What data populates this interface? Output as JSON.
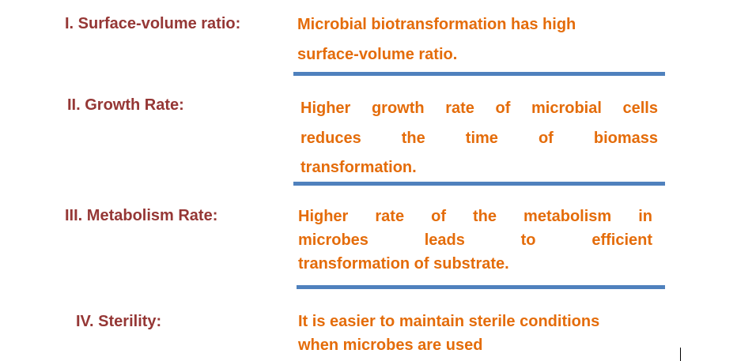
{
  "items": [
    {
      "label": "I. Surface-volume ratio:",
      "lines": [
        "Microbial biotransformation has high",
        "surface-volume ratio."
      ]
    },
    {
      "label": "II. Growth Rate:",
      "lines": [
        "Higher growth rate of microbial cells",
        "reduces the time of biomass",
        "transformation."
      ]
    },
    {
      "label": "III. Metabolism Rate:",
      "lines": [
        "Higher rate of the metabolism in",
        "microbes leads to efficient",
        "transformation of substrate."
      ]
    },
    {
      "label": "IV. Sterility:",
      "lines": [
        "It is easier to maintain sterile conditions",
        "when microbes are used"
      ]
    }
  ],
  "colors": {
    "label": "#953735",
    "text": "#E46C0A",
    "rule": "#4F81BD"
  }
}
